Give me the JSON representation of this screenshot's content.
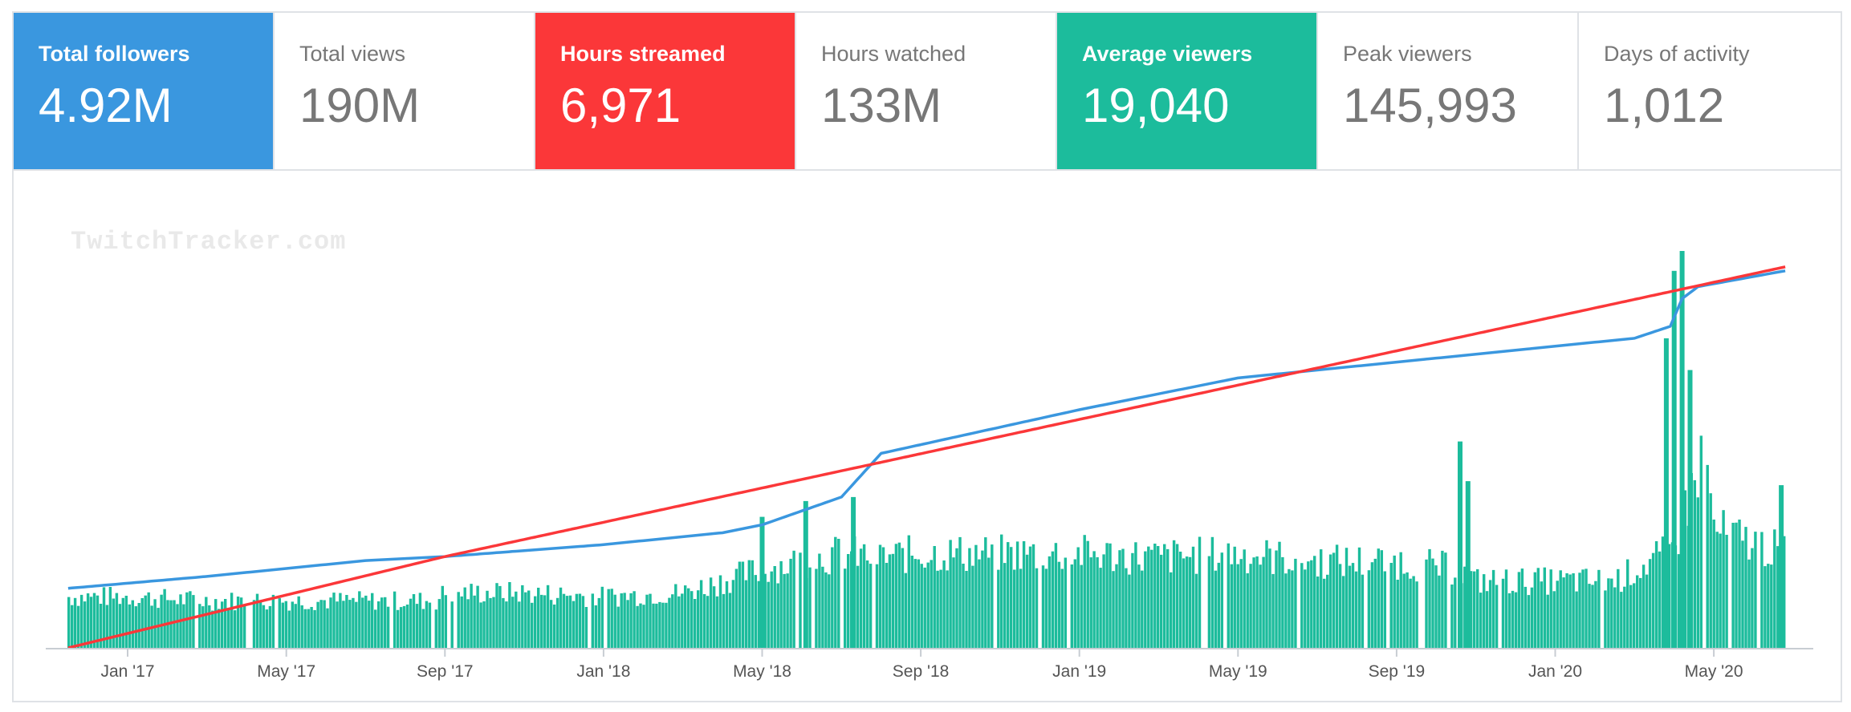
{
  "stats": [
    {
      "label": "Total followers",
      "value": "4.92M",
      "color": "#3a97df",
      "highlight": true
    },
    {
      "label": "Total views",
      "value": "190M",
      "color": "#ffffff",
      "highlight": false
    },
    {
      "label": "Hours streamed",
      "value": "6,971",
      "color": "#fb3739",
      "highlight": true
    },
    {
      "label": "Hours watched",
      "value": "133M",
      "color": "#ffffff",
      "highlight": false
    },
    {
      "label": "Average viewers",
      "value": "19,040",
      "color": "#1cbc9c",
      "highlight": true
    },
    {
      "label": "Peak viewers",
      "value": "145,993",
      "color": "#ffffff",
      "highlight": false
    },
    {
      "label": "Days of activity",
      "value": "1,012",
      "color": "#ffffff",
      "highlight": false
    }
  ],
  "watermark": "TwitchTracker.com",
  "chart_data": {
    "type": "bar",
    "xlabel": "",
    "ylabel": "",
    "grid": false,
    "x_ticks": [
      "Jan '17",
      "May '17",
      "Sep '17",
      "Jan '18",
      "May '18",
      "Sep '18",
      "Jan '19",
      "May '19",
      "Sep '19",
      "Jan '20",
      "May '20"
    ],
    "tick_months": [
      0,
      4,
      8,
      12,
      16,
      20,
      24,
      28,
      32,
      36,
      40
    ],
    "x_range_months": [
      -1.6,
      41.9
    ],
    "colors": {
      "viewers": "#1cbc9c",
      "followers": "#3a97df",
      "hours": "#fb3739"
    },
    "viewers_relative": {
      "note_scale": "relative to peak bar = 1.0 (no y-axis shown)",
      "month": [
        -1.5,
        0,
        2,
        4,
        6,
        7.8,
        8,
        10,
        12,
        14,
        15,
        16,
        17,
        18,
        19,
        20,
        22,
        24,
        26,
        28,
        30,
        32,
        33.5,
        34,
        36,
        37.5,
        39,
        39.8,
        40,
        41,
        41.8
      ],
      "value": [
        0.13,
        0.13,
        0.12,
        0.12,
        0.12,
        0.12,
        0.14,
        0.14,
        0.13,
        0.14,
        0.17,
        0.2,
        0.22,
        0.24,
        0.23,
        0.24,
        0.24,
        0.24,
        0.23,
        0.24,
        0.22,
        0.22,
        0.2,
        0.17,
        0.17,
        0.17,
        0.25,
        0.52,
        0.3,
        0.27,
        0.24
      ]
    },
    "spikes_relative": [
      {
        "month": 16.0,
        "value": 0.33
      },
      {
        "month": 17.1,
        "value": 0.37
      },
      {
        "month": 18.3,
        "value": 0.38
      },
      {
        "month": 33.6,
        "value": 0.52
      },
      {
        "month": 33.8,
        "value": 0.42
      },
      {
        "month": 38.8,
        "value": 0.78
      },
      {
        "month": 39.0,
        "value": 0.95
      },
      {
        "month": 39.2,
        "value": 1.0
      },
      {
        "month": 39.4,
        "value": 0.7
      },
      {
        "month": 41.7,
        "value": 0.41
      }
    ],
    "followers_relative": {
      "month": [
        -1.5,
        2,
        6,
        8,
        12,
        15,
        16,
        18,
        19,
        24,
        28,
        32,
        34,
        38,
        38.9,
        39.2,
        39.6,
        41.8
      ],
      "value": [
        0.15,
        0.18,
        0.22,
        0.23,
        0.26,
        0.29,
        0.31,
        0.38,
        0.49,
        0.6,
        0.68,
        0.72,
        0.74,
        0.78,
        0.81,
        0.88,
        0.91,
        0.95
      ]
    },
    "hours_relative": {
      "month": [
        -1.5,
        8,
        41.8
      ],
      "value": [
        0.0,
        0.23,
        0.96
      ]
    }
  }
}
